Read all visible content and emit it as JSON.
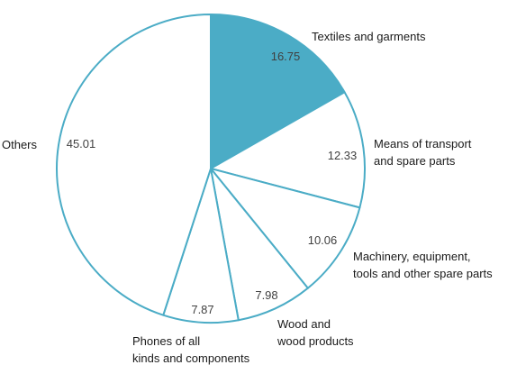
{
  "chart_data": {
    "type": "pie",
    "title": "",
    "start_angle_deg": 0,
    "direction": "clockwise",
    "stroke_color": "#4bacc6",
    "highlight_color": "#4bacc6",
    "default_fill": "#ffffff",
    "slices": [
      {
        "label": "Textiles and garments",
        "label_lines": [
          "Textiles and garments"
        ],
        "value": 16.75,
        "highlighted": true
      },
      {
        "label": "Means of transport and spare parts",
        "label_lines": [
          "Means of transport",
          "and spare parts"
        ],
        "value": 12.33,
        "highlighted": false
      },
      {
        "label": "Machinery, equipment, tools and other spare parts",
        "label_lines": [
          "Machinery, equipment,",
          "tools and other spare parts"
        ],
        "value": 10.06,
        "highlighted": false
      },
      {
        "label": "Wood and wood products",
        "label_lines": [
          "Wood and",
          "wood products"
        ],
        "value": 7.98,
        "highlighted": false
      },
      {
        "label": "Phones of all kinds and components",
        "label_lines": [
          "Phones of all",
          "kinds and components"
        ],
        "value": 7.87,
        "highlighted": false
      },
      {
        "label": "Others",
        "label_lines": [
          "Others"
        ],
        "value": 45.01,
        "highlighted": false
      }
    ]
  }
}
